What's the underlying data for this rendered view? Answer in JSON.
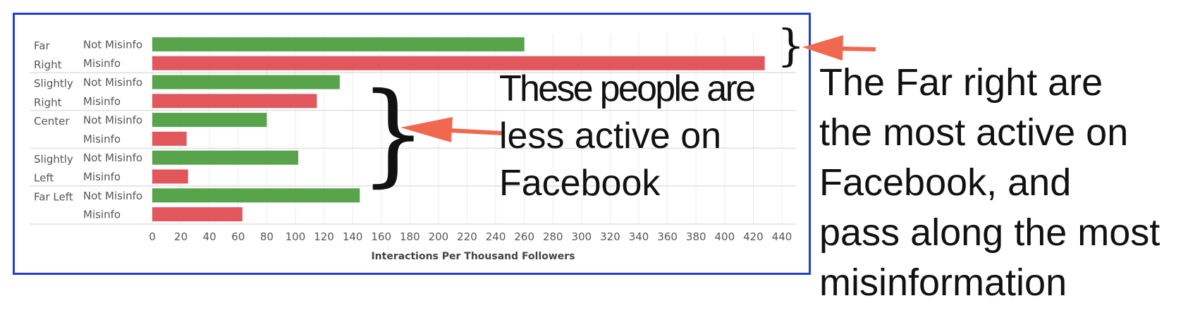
{
  "chart_data": {
    "type": "bar",
    "orientation": "horizontal",
    "xlabel": "Interactions Per Thousand Followers",
    "xlim": [
      0,
      440
    ],
    "xticks": [
      "0",
      "20",
      "40",
      "60",
      "80",
      "100",
      "120",
      "140",
      "160",
      "180",
      "200",
      "220",
      "240",
      "260",
      "280",
      "300",
      "320",
      "340",
      "360",
      "380",
      "400",
      "420",
      "440"
    ],
    "grid": true,
    "groups": [
      {
        "label_lines": [
          "Far",
          "Right"
        ],
        "bars": [
          {
            "label": "Not Misinfo",
            "value": 260
          },
          {
            "label": "Misinfo",
            "value": 428
          }
        ]
      },
      {
        "label_lines": [
          "Slightly",
          "Right"
        ],
        "bars": [
          {
            "label": "Not Misinfo",
            "value": 131
          },
          {
            "label": "Misinfo",
            "value": 115
          }
        ]
      },
      {
        "label_lines": [
          "Center"
        ],
        "bars": [
          {
            "label": "Not Misinfo",
            "value": 80
          },
          {
            "label": "Misinfo",
            "value": 24
          }
        ]
      },
      {
        "label_lines": [
          "Slightly",
          "Left"
        ],
        "bars": [
          {
            "label": "Not Misinfo",
            "value": 102
          },
          {
            "label": "Misinfo",
            "value": 25
          }
        ]
      },
      {
        "label_lines": [
          "Far Left"
        ],
        "bars": [
          {
            "label": "Not Misinfo",
            "value": 145
          },
          {
            "label": "Misinfo",
            "value": 63
          }
        ]
      }
    ],
    "colors": {
      "Not Misinfo": "#57a44b",
      "Misinfo": "#e1575b"
    }
  },
  "annotations": {
    "inner_text_lines": [
      "These people are",
      "less active on",
      "Facebook"
    ],
    "outer_text_lines": [
      "The Far right are",
      "the most active on",
      "Facebook, and",
      "pass along the most",
      "misinformation"
    ],
    "small_brace": "}",
    "big_brace": "}",
    "arrow_color": "#f0694f",
    "frame_color": "#1f3fd6"
  }
}
